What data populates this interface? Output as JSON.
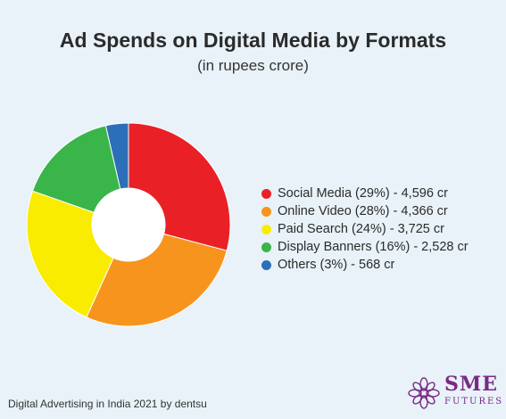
{
  "chart_data": {
    "type": "pie",
    "title": "Ad Spends on Digital Media by Formats",
    "subtitle": "(in rupees crore)",
    "legend_position": "right",
    "slices": [
      {
        "label": "Social Media (29%) - 4,596 cr",
        "value": 4596,
        "percent": 29,
        "color": "#ea2027"
      },
      {
        "label": "Online Video (28%) - 4,366 cr",
        "value": 4366,
        "percent": 28,
        "color": "#f7941d"
      },
      {
        "label": "Paid Search (24%) - 3,725 cr",
        "value": 3725,
        "percent": 24,
        "color": "#f9ec00"
      },
      {
        "label": "Display Banners (16%) - 2,528 cr",
        "value": 2528,
        "percent": 16,
        "color": "#39b54a"
      },
      {
        "label": "Others (3%) - 568 cr",
        "value": 568,
        "percent": 3,
        "color": "#2b6fb8"
      }
    ]
  },
  "source": "Digital Advertising in India 2021 by dentsu",
  "brand": {
    "name": "SME",
    "tagline": "FUTURES",
    "accent": "#7a2a86"
  }
}
